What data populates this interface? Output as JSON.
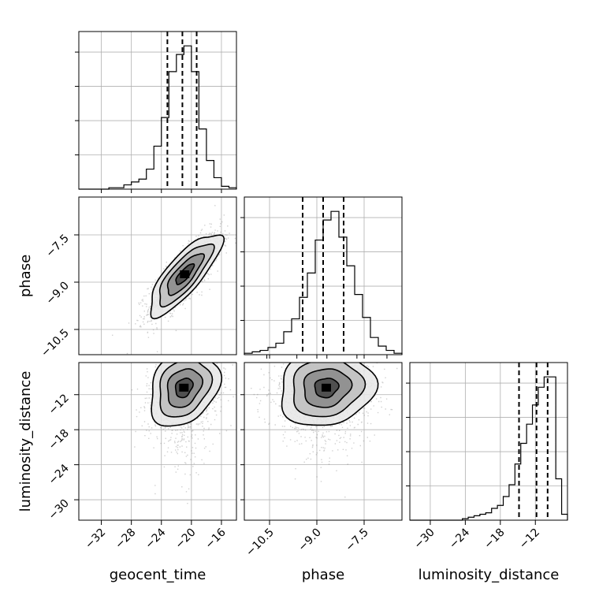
{
  "chart_data": {
    "type": "corner",
    "title": "",
    "parameters": [
      {
        "name": "geocent_time",
        "label": "geocent_time",
        "range": [
          -35,
          -14
        ],
        "ticks": [
          -32,
          -28,
          -24,
          -20,
          -16
        ],
        "tick_labels": [
          "−32",
          "−28",
          "−24",
          "−20",
          "−16"
        ],
        "quantiles": [
          -23.2,
          -21.2,
          -19.3
        ]
      },
      {
        "name": "phase",
        "label": "phase",
        "range": [
          -11.3,
          -6.3
        ],
        "ticks": [
          -10.5,
          -9.0,
          -7.5
        ],
        "tick_labels": [
          "−10.5",
          "−9.0",
          "−7.5"
        ],
        "quantiles": [
          -9.45,
          -8.8,
          -8.15
        ]
      },
      {
        "name": "luminosity_distance",
        "label": "luminosity_distance",
        "range": [
          -33.5,
          -6.5
        ],
        "ticks": [
          -30,
          -24,
          -18,
          -12
        ],
        "tick_labels": [
          "−30",
          "−24",
          "−18",
          "−12"
        ],
        "quantiles": [
          -14.8,
          -11.8,
          -9.9
        ]
      }
    ],
    "histograms": [
      {
        "param": "geocent_time",
        "bin_edges": [
          -35,
          -34,
          -33,
          -32,
          -31,
          -30,
          -29,
          -28,
          -27,
          -26,
          -25,
          -24,
          -23,
          -22,
          -21,
          -20,
          -19,
          -18,
          -17,
          -16,
          -15,
          -14
        ],
        "values": [
          0,
          0,
          0,
          0,
          0.01,
          0.01,
          0.03,
          0.05,
          0.07,
          0.14,
          0.3,
          0.5,
          0.82,
          0.94,
          1.0,
          0.82,
          0.42,
          0.2,
          0.08,
          0.02,
          0.01
        ]
      },
      {
        "param": "phase",
        "bin_edges": [
          -11.3,
          -11.05,
          -10.8,
          -10.55,
          -10.3,
          -10.05,
          -9.8,
          -9.55,
          -9.3,
          -9.05,
          -8.8,
          -8.55,
          -8.3,
          -8.05,
          -7.8,
          -7.55,
          -7.3,
          -7.05,
          -6.8,
          -6.55,
          -6.3
        ],
        "values": [
          0.01,
          0.02,
          0.03,
          0.05,
          0.08,
          0.16,
          0.25,
          0.4,
          0.57,
          0.8,
          0.94,
          1.0,
          0.82,
          0.62,
          0.42,
          0.26,
          0.12,
          0.06,
          0.03,
          0.01
        ]
      },
      {
        "param": "luminosity_distance",
        "bin_edges": [
          -33.5,
          -32.5,
          -31.5,
          -30.5,
          -29.5,
          -28.5,
          -27.5,
          -26.5,
          -25.5,
          -24.5,
          -23.5,
          -22.5,
          -21.5,
          -20.5,
          -19.5,
          -18.5,
          -17.5,
          -16.5,
          -15.5,
          -14.5,
          -13.5,
          -12.5,
          -11.5,
          -10.5,
          -9.5,
          -8.5,
          -7.5,
          -6.5
        ],
        "values": [
          0,
          0,
          0,
          0,
          0,
          0,
          0,
          0,
          0,
          0.01,
          0.02,
          0.03,
          0.04,
          0.05,
          0.08,
          0.1,
          0.16,
          0.24,
          0.38,
          0.52,
          0.65,
          0.78,
          0.9,
          0.97,
          0.97,
          0.28,
          0.04
        ]
      }
    ],
    "joint_2d": [
      {
        "x": "geocent_time",
        "y": "phase",
        "x_mean": -20.9,
        "y_mean": -8.75,
        "x_sd": 2.4,
        "y_sd": 0.65,
        "correlation": 0.8
      },
      {
        "x": "geocent_time",
        "y": "luminosity_distance",
        "x_mean": -21.0,
        "y_mean": -10.8,
        "x_sd": 2.3,
        "y_sd": 3.3,
        "correlation": 0.25
      },
      {
        "x": "phase",
        "y": "luminosity_distance",
        "x_mean": -8.7,
        "y_mean": -10.8,
        "x_sd": 0.75,
        "y_sd": 3.3,
        "correlation": 0.1
      }
    ],
    "grid": true,
    "quantile_lines": "dashed",
    "contour_levels": [
      0.5,
      1.0,
      1.5,
      2.0
    ]
  }
}
